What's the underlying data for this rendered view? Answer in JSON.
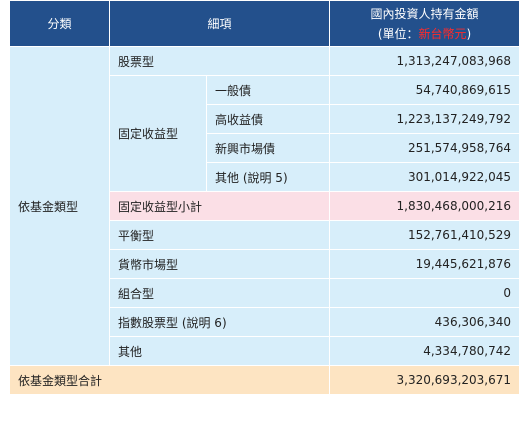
{
  "header": {
    "category": "分類",
    "item": "細項",
    "amount_title": "國內投資人持有金額",
    "unit_prefix": "(單位：",
    "unit_currency": "新台幣元",
    "unit_suffix": ")"
  },
  "group_label": "依基金類型",
  "fixed_income_label": "固定收益型",
  "rows": [
    {
      "label": "股票型",
      "value": "1,313,247,083,968"
    },
    {
      "label": "一般債",
      "value": "54,740,869,615"
    },
    {
      "label": "高收益債",
      "value": "1,223,137,249,792"
    },
    {
      "label": "新興市場債",
      "value": "251,574,958,764"
    },
    {
      "label": "其他 (說明 5)",
      "value": "301,014,922,045"
    },
    {
      "label": "固定收益型小計",
      "value": "1,830,468,000,216"
    },
    {
      "label": "平衡型",
      "value": "152,761,410,529"
    },
    {
      "label": "貨幣市場型",
      "value": "19,445,621,876"
    },
    {
      "label": "組合型",
      "value": "0"
    },
    {
      "label": "指數股票型 (說明 6)",
      "value": "436,306,340"
    },
    {
      "label": "其他",
      "value": "4,334,780,742"
    }
  ],
  "total": {
    "label": "依基金類型合計",
    "value": "3,320,693,203,671"
  },
  "colors": {
    "header_bg": "#23508c",
    "row_bg": "#d7eefa",
    "subtotal_bg": "#fbdfe6",
    "total_bg": "#fde4c2",
    "unit_text": "#ff2a2a"
  }
}
